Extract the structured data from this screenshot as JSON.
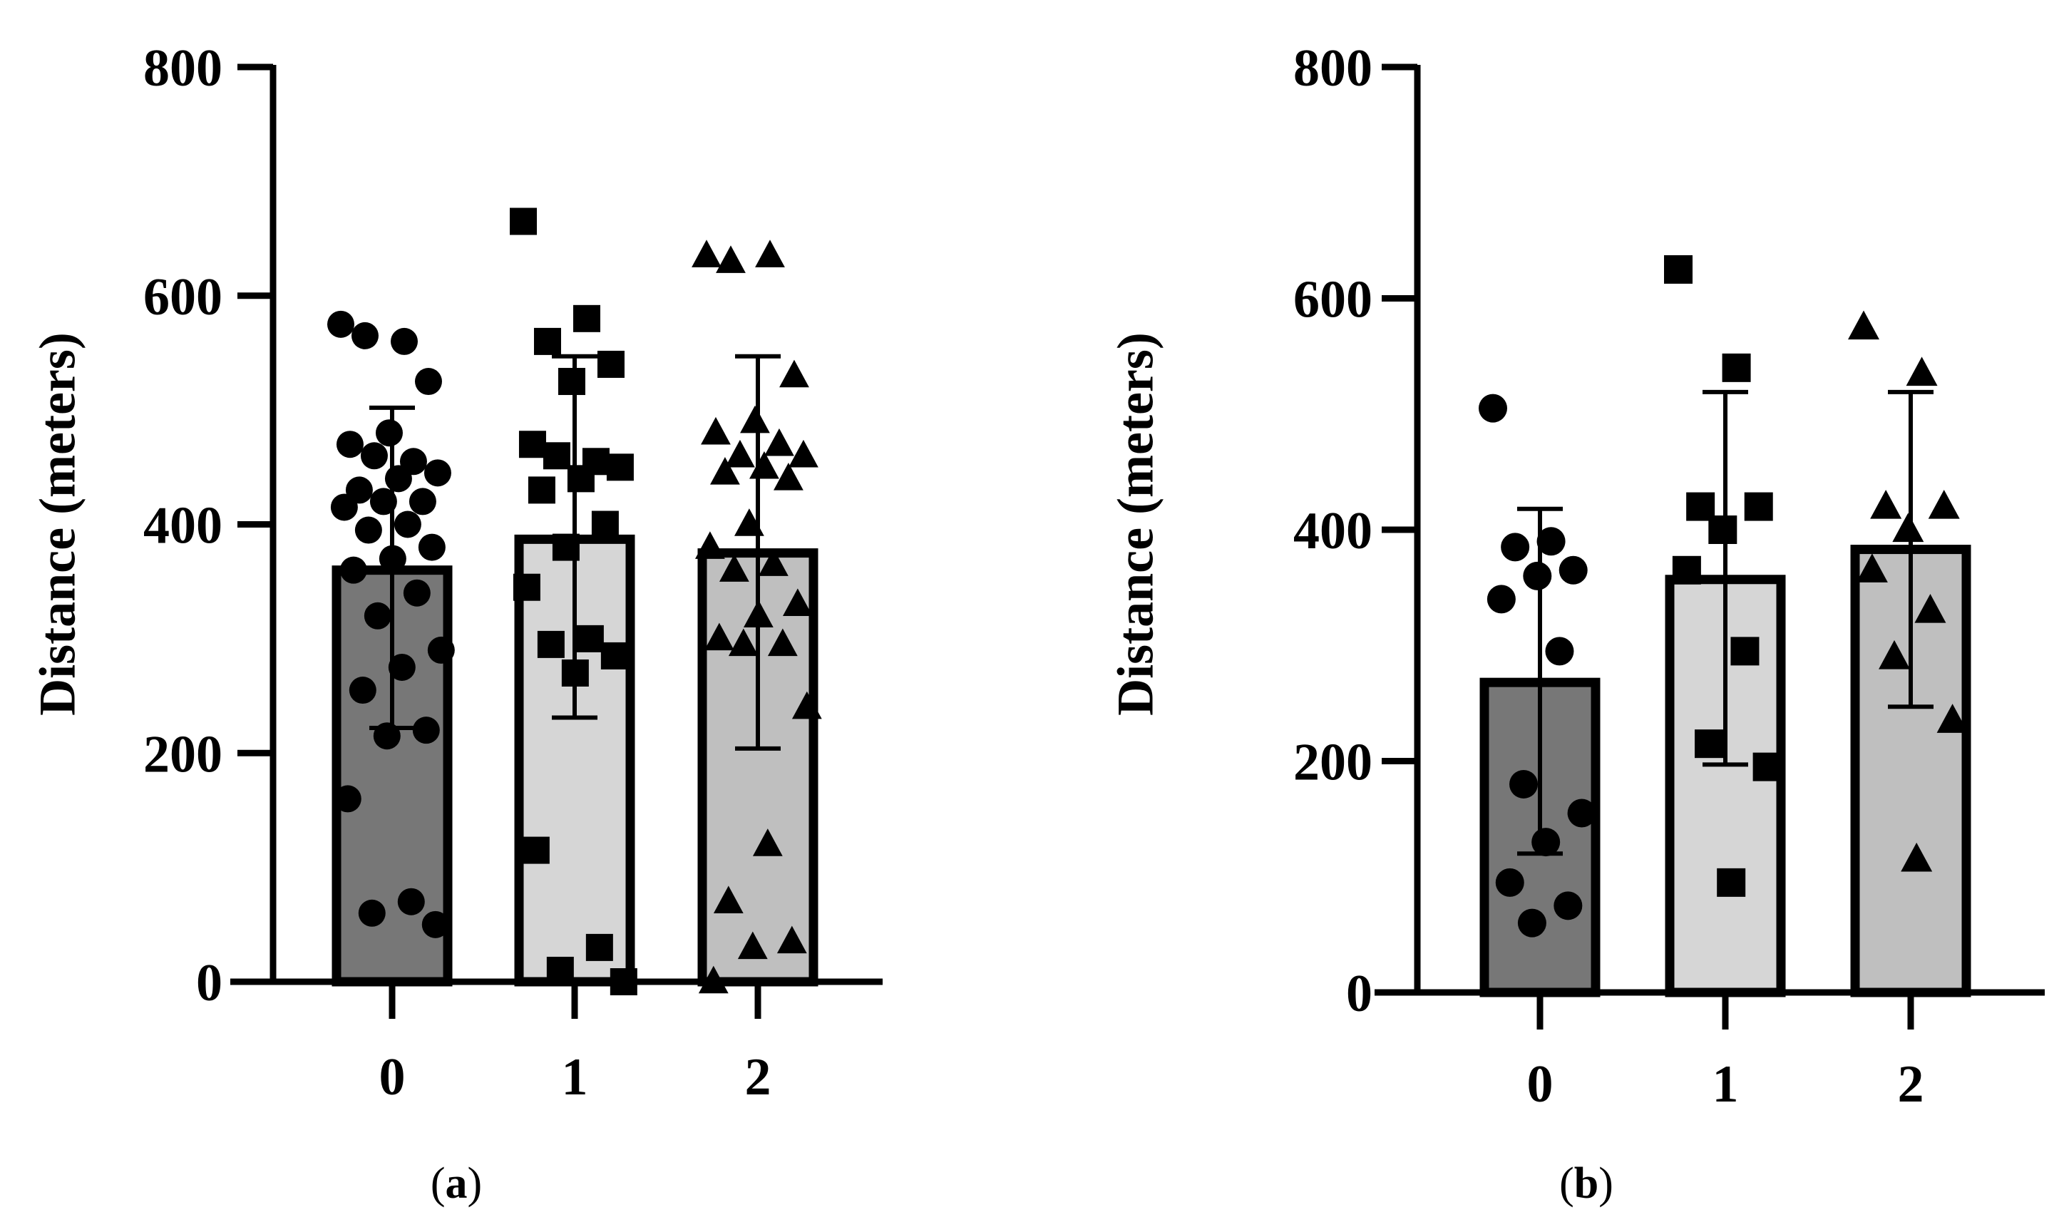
{
  "chart_data": [
    {
      "type": "bar",
      "panel_label": "a",
      "ylabel": "Distance (meters)",
      "xlabel": "",
      "ylim": [
        0,
        800
      ],
      "yticks": [
        0,
        200,
        400,
        600,
        800
      ],
      "categories": [
        "0",
        "1",
        "2"
      ],
      "values": [
        360,
        387,
        375
      ],
      "error": [
        {
          "low": 222,
          "high": 502
        },
        {
          "low": 231,
          "high": 547
        },
        {
          "low": 204,
          "high": 547
        }
      ],
      "bar_colors": [
        "#777777",
        "#d6d6d6",
        "#bfbfbf"
      ],
      "marker_shapes": [
        "circle",
        "square",
        "triangle"
      ],
      "points": [
        [
          575,
          560,
          565,
          525,
          480,
          470,
          455,
          460,
          445,
          440,
          430,
          420,
          420,
          415,
          400,
          395,
          380,
          370,
          360,
          340,
          320,
          290,
          275,
          255,
          220,
          215,
          160,
          70,
          60,
          50
        ],
        [
          665,
          580,
          560,
          540,
          525,
          470,
          455,
          460,
          450,
          440,
          430,
          400,
          380,
          345,
          300,
          295,
          285,
          270,
          115,
          30,
          10,
          0
        ],
        [
          635,
          635,
          630,
          530,
          490,
          480,
          470,
          460,
          460,
          450,
          445,
          440,
          400,
          380,
          365,
          360,
          330,
          320,
          300,
          295,
          295,
          240,
          120,
          70,
          35,
          30,
          0
        ]
      ]
    },
    {
      "type": "bar",
      "panel_label": "b",
      "ylabel": "Distance (meters)",
      "xlabel": "",
      "ylim": [
        0,
        800
      ],
      "yticks": [
        0,
        200,
        400,
        600,
        800
      ],
      "categories": [
        "0",
        "1",
        "2"
      ],
      "values": [
        268,
        357,
        383
      ],
      "error": [
        {
          "low": 120,
          "high": 418
        },
        {
          "low": 197,
          "high": 519
        },
        {
          "low": 247,
          "high": 519
        }
      ],
      "bar_colors": [
        "#777777",
        "#d6d6d6",
        "#bfbfbf"
      ],
      "marker_shapes": [
        "circle",
        "square",
        "triangle"
      ],
      "points": [
        [
          505,
          390,
          385,
          365,
          360,
          340,
          295,
          180,
          155,
          130,
          95,
          75,
          60
        ],
        [
          625,
          540,
          420,
          420,
          400,
          365,
          295,
          215,
          195,
          95
        ],
        [
          575,
          535,
          420,
          420,
          400,
          365,
          330,
          290,
          235,
          115
        ]
      ]
    }
  ]
}
